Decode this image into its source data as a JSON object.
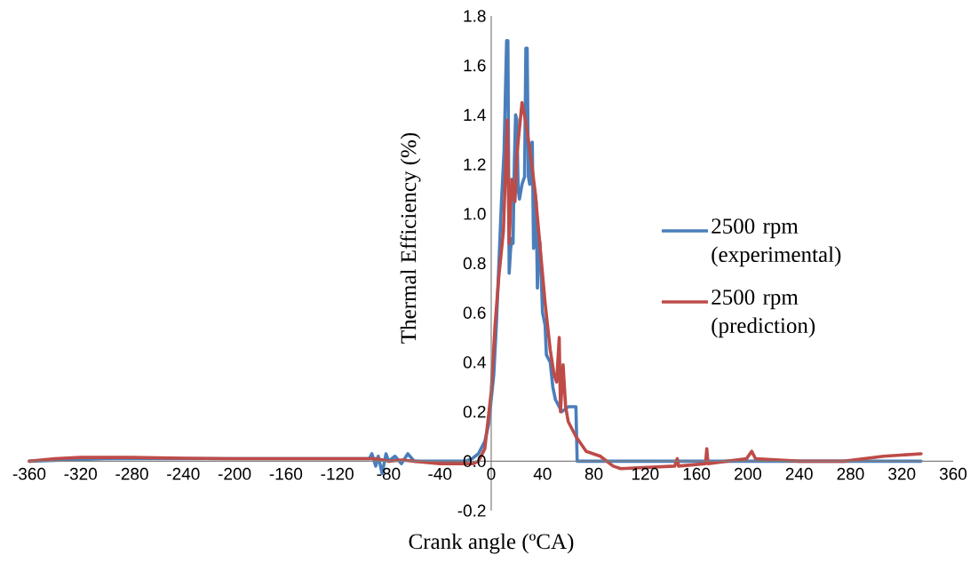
{
  "chart_data": {
    "type": "line",
    "xlabel": "Crank angle (ºCA)",
    "ylabel": "Thermal Efficiency (%)",
    "xlim": [
      -360,
      360
    ],
    "ylim": [
      -0.2,
      1.8
    ],
    "xticks": [
      -360,
      -320,
      -280,
      -240,
      -200,
      -160,
      -120,
      -80,
      -40,
      0,
      40,
      80,
      120,
      160,
      200,
      240,
      280,
      320,
      360
    ],
    "yticks": [
      {
        "value": -0.2,
        "label": "-0.2"
      },
      {
        "value": 0,
        "label": "0.0"
      },
      {
        "value": 0.2,
        "label": "0.2"
      },
      {
        "value": 0.4,
        "label": "0.4"
      },
      {
        "value": 0.6,
        "label": "0.6"
      },
      {
        "value": 0.8,
        "label": "0.8"
      },
      {
        "value": 1.0,
        "label": "1.0"
      },
      {
        "value": 1.2,
        "label": "1.2"
      },
      {
        "value": 1.4,
        "label": "1.4"
      },
      {
        "value": 1.6,
        "label": "1.6"
      },
      {
        "value": 1.8,
        "label": "1.8"
      }
    ],
    "grid": false,
    "legend": "right",
    "marker": "none",
    "line_style": "solid",
    "series": [
      {
        "name": "2500 rpm (experimental)",
        "color": "#4a7ebb",
        "x": [
          -360,
          -300,
          -200,
          -95,
          -93,
          -90,
          -88,
          -85,
          -82,
          -80,
          -75,
          -70,
          -65,
          -60,
          -40,
          -20,
          -15,
          -10,
          -5,
          -2,
          0,
          2,
          4,
          6,
          8,
          10,
          12,
          13,
          14,
          15,
          16,
          17,
          18,
          19,
          20,
          21,
          22,
          24,
          26,
          27,
          28,
          29,
          30,
          31,
          32,
          33,
          34,
          35,
          36,
          37,
          38,
          40,
          42,
          43,
          46,
          48,
          50,
          55,
          60,
          66,
          67,
          100,
          200,
          300,
          335
        ],
        "values": [
          0,
          0.01,
          0.01,
          0.01,
          0.03,
          -0.02,
          0.02,
          -0.05,
          0.03,
          0,
          0.02,
          -0.01,
          0.03,
          0,
          0,
          0,
          0.01,
          0.03,
          0.08,
          0.15,
          0.25,
          0.35,
          0.55,
          0.8,
          1.05,
          1.25,
          1.7,
          1.7,
          0.76,
          0.85,
          0.9,
          0.88,
          1.2,
          1.4,
          1.38,
          1.1,
          1.06,
          1.12,
          1.15,
          1.67,
          1.67,
          1.15,
          1.12,
          1.28,
          1.29,
          0.86,
          1.09,
          1.05,
          0.7,
          0.91,
          0.88,
          0.6,
          0.55,
          0.43,
          0.4,
          0.3,
          0.25,
          0.2,
          0.22,
          0.22,
          0,
          0,
          0,
          0,
          0
        ]
      },
      {
        "name": "2500 rpm (prediction)",
        "color": "#be4b48",
        "x": [
          -360,
          -340,
          -320,
          -280,
          -240,
          -200,
          -160,
          -120,
          -90,
          -80,
          -70,
          -60,
          -40,
          -20,
          -14,
          -10,
          -5,
          0,
          3,
          6,
          9.5,
          12.5,
          14,
          16,
          18.5,
          20,
          24,
          27,
          30,
          34,
          37,
          42,
          46,
          49,
          51,
          53,
          54,
          56,
          58,
          60,
          66,
          74,
          85,
          95,
          101,
          143,
          145,
          146,
          167,
          168,
          169,
          199,
          203,
          206,
          240,
          275,
          306,
          335
        ],
        "values": [
          0,
          0.01,
          0.015,
          0.015,
          0.012,
          0.01,
          0.01,
          0.01,
          0.01,
          0.0,
          0.005,
          0.0,
          -0.01,
          -0.01,
          -0.01,
          0.0,
          0.05,
          0.28,
          0.55,
          0.75,
          0.93,
          1.38,
          0.88,
          1.14,
          1.05,
          1.24,
          1.45,
          1.37,
          1.26,
          1.1,
          0.93,
          0.64,
          0.45,
          0.35,
          0.32,
          0.5,
          0.2,
          0.39,
          0.22,
          0.16,
          0.1,
          0.04,
          0.02,
          -0.02,
          -0.03,
          -0.02,
          0.01,
          -0.02,
          -0.01,
          0.05,
          -0.01,
          0.01,
          0.04,
          0.01,
          0.0,
          0.0,
          0.02,
          0.03
        ]
      }
    ]
  }
}
